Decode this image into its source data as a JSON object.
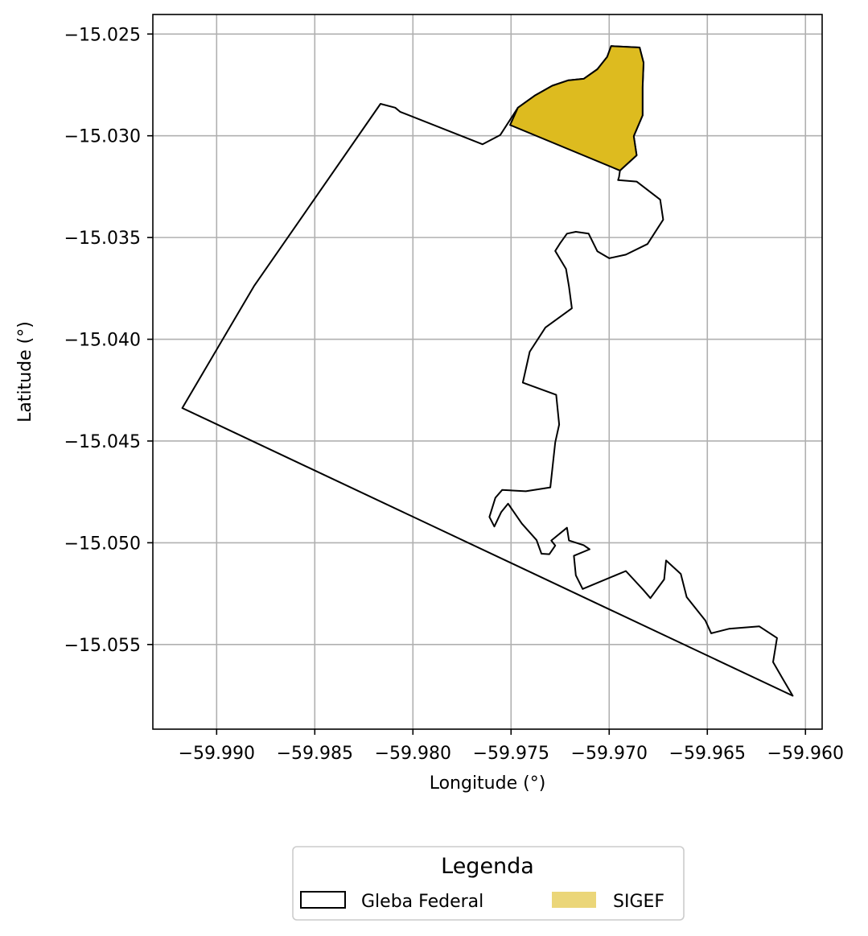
{
  "chart_data": {
    "type": "map",
    "xlabel": "Longitude (°)",
    "ylabel": "Latitude (°)",
    "xlim": [
      -59.99325,
      -59.95915
    ],
    "ylim": [
      -15.05916,
      -15.02404
    ],
    "xticks": [
      -59.99,
      -59.985,
      -59.98,
      -59.975,
      -59.97,
      -59.965,
      -59.96
    ],
    "yticks": [
      -15.025,
      -15.03,
      -15.035,
      -15.04,
      -15.045,
      -15.05,
      -15.055
    ],
    "xtick_labels": [
      "−59.990",
      "−59.985",
      "−59.980",
      "−59.975",
      "−59.970",
      "−59.965",
      "−59.960"
    ],
    "ytick_labels": [
      "−15.025",
      "−15.030",
      "−15.035",
      "−15.040",
      "−15.045",
      "−15.050",
      "−15.055"
    ],
    "grid": true,
    "legend": {
      "title": "Legenda",
      "placement": "bottom-center",
      "entries": [
        {
          "label": "Gleba Federal",
          "style": "outline",
          "color": "#000000"
        },
        {
          "label": "SIGEF",
          "style": "fill",
          "color": "#DDBB1F"
        }
      ]
    },
    "layers": [
      {
        "name": "Gleba Federal",
        "fill": "none",
        "stroke": "#000000",
        "coordinates": [
          [
            -59.98165,
            -15.02843
          ],
          [
            -59.9809,
            -15.02862
          ],
          [
            -59.98065,
            -15.02882
          ],
          [
            -59.97645,
            -15.03042
          ],
          [
            -59.97555,
            -15.02996
          ],
          [
            -59.97465,
            -15.02862
          ],
          [
            -59.9738,
            -15.02803
          ],
          [
            -59.9729,
            -15.02754
          ],
          [
            -59.9721,
            -15.02728
          ],
          [
            -59.9713,
            -15.0272
          ],
          [
            -59.9706,
            -15.02673
          ],
          [
            -59.9701,
            -15.02612
          ],
          [
            -59.9699,
            -15.02559
          ],
          [
            -59.96845,
            -15.02566
          ],
          [
            -59.96825,
            -15.02641
          ],
          [
            -59.9683,
            -15.02763
          ],
          [
            -59.9683,
            -15.029
          ],
          [
            -59.96875,
            -15.03002
          ],
          [
            -59.9686,
            -15.03096
          ],
          [
            -59.96945,
            -15.03171
          ],
          [
            -59.9695,
            -15.03203
          ],
          [
            -59.96955,
            -15.03218
          ],
          [
            -59.9686,
            -15.03225
          ],
          [
            -59.9674,
            -15.03314
          ],
          [
            -59.96725,
            -15.03412
          ],
          [
            -59.96805,
            -15.03532
          ],
          [
            -59.96915,
            -15.03584
          ],
          [
            -59.97,
            -15.03602
          ],
          [
            -59.9706,
            -15.03568
          ],
          [
            -59.97105,
            -15.03481
          ],
          [
            -59.9717,
            -15.03472
          ],
          [
            -59.97215,
            -15.03481
          ],
          [
            -59.9725,
            -15.03528
          ],
          [
            -59.97275,
            -15.03566
          ],
          [
            -59.9722,
            -15.03654
          ],
          [
            -59.97205,
            -15.03741
          ],
          [
            -59.9719,
            -15.03848
          ],
          [
            -59.97325,
            -15.03942
          ],
          [
            -59.97405,
            -15.04061
          ],
          [
            -59.9744,
            -15.04213
          ],
          [
            -59.9727,
            -15.04273
          ],
          [
            -59.97255,
            -15.04419
          ],
          [
            -59.97275,
            -15.04507
          ],
          [
            -59.9729,
            -15.04641
          ],
          [
            -59.973,
            -15.04728
          ],
          [
            -59.97425,
            -15.04747
          ],
          [
            -59.97545,
            -15.0474
          ],
          [
            -59.9758,
            -15.04779
          ],
          [
            -59.9761,
            -15.04873
          ],
          [
            -59.97585,
            -15.0492
          ],
          [
            -59.9755,
            -15.04849
          ],
          [
            -59.97515,
            -15.04808
          ],
          [
            -59.97445,
            -15.04906
          ],
          [
            -59.9737,
            -15.04987
          ],
          [
            -59.97345,
            -15.05054
          ],
          [
            -59.97305,
            -15.05056
          ],
          [
            -59.97275,
            -15.05014
          ],
          [
            -59.97295,
            -15.04989
          ],
          [
            -59.97215,
            -15.04926
          ],
          [
            -59.97205,
            -15.04989
          ],
          [
            -59.9713,
            -15.05012
          ],
          [
            -59.971,
            -15.05032
          ],
          [
            -59.9718,
            -15.05064
          ],
          [
            -59.9717,
            -15.0516
          ],
          [
            -59.97135,
            -15.05227
          ],
          [
            -59.96915,
            -15.05139
          ],
          [
            -59.96825,
            -15.05233
          ],
          [
            -59.9679,
            -15.05272
          ],
          [
            -59.9672,
            -15.0518
          ],
          [
            -59.9671,
            -15.05087
          ],
          [
            -59.96635,
            -15.05153
          ],
          [
            -59.96605,
            -15.05267
          ],
          [
            -59.9651,
            -15.05382
          ],
          [
            -59.9648,
            -15.05445
          ],
          [
            -59.9639,
            -15.05423
          ],
          [
            -59.96235,
            -15.05411
          ],
          [
            -59.96145,
            -15.05468
          ],
          [
            -59.96165,
            -15.05586
          ],
          [
            -59.96115,
            -15.0567
          ],
          [
            -59.96065,
            -15.05752
          ],
          [
            -59.99175,
            -15.04338
          ],
          [
            -59.9881,
            -15.03739
          ],
          [
            -59.98165,
            -15.02843
          ]
        ]
      },
      {
        "name": "SIGEF",
        "fill": "#DDBB1F",
        "stroke": "#000000",
        "coordinates": [
          [
            -59.97505,
            -15.02947
          ],
          [
            -59.97465,
            -15.02862
          ],
          [
            -59.9738,
            -15.02803
          ],
          [
            -59.9729,
            -15.02754
          ],
          [
            -59.9721,
            -15.02728
          ],
          [
            -59.9713,
            -15.0272
          ],
          [
            -59.9706,
            -15.02673
          ],
          [
            -59.9701,
            -15.02612
          ],
          [
            -59.9699,
            -15.02559
          ],
          [
            -59.96845,
            -15.02566
          ],
          [
            -59.96825,
            -15.02641
          ],
          [
            -59.9683,
            -15.02763
          ],
          [
            -59.9683,
            -15.029
          ],
          [
            -59.96875,
            -15.03002
          ],
          [
            -59.9686,
            -15.03096
          ],
          [
            -59.96945,
            -15.03171
          ],
          [
            -59.97505,
            -15.02947
          ]
        ]
      }
    ]
  }
}
